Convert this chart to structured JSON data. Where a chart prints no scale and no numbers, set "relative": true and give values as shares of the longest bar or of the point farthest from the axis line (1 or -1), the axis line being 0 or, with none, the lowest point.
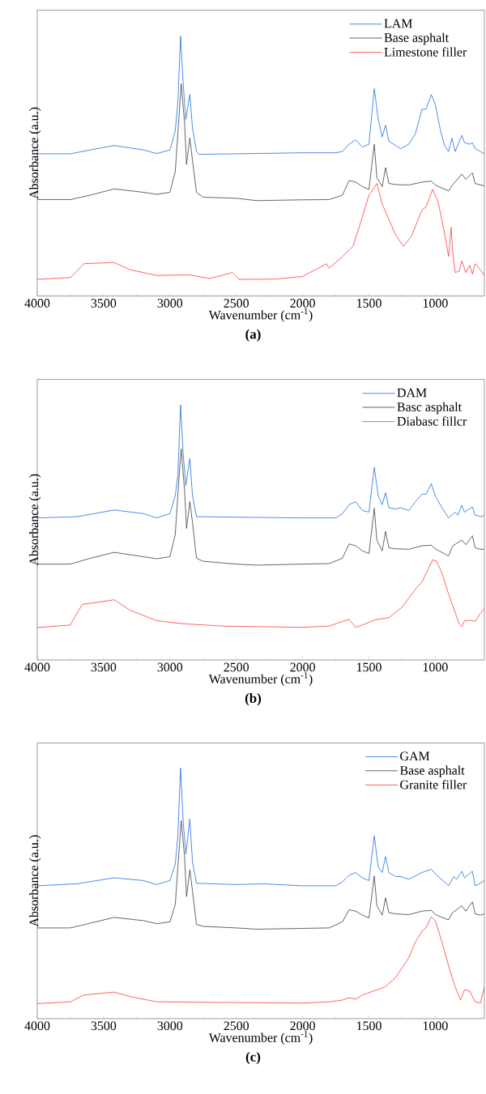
{
  "chart_data": [
    {
      "type": "line",
      "relative": true,
      "xlabel": "Wavenumber (cm$^{-1}$)",
      "ylabel": "Absorbance (a.u.)",
      "annotations": [
        "(a)"
      ],
      "xlim": [
        4000,
        630
      ],
      "xticks": [
        4000,
        3500,
        3000,
        2500,
        2000,
        1500,
        1000
      ],
      "legend": "top right",
      "series": [
        {
          "name": "LAM",
          "color": "#1f6fe0",
          "x": [
            4000,
            3750,
            3600,
            3420,
            3200,
            3100,
            3000,
            2960,
            2940,
            2920,
            2900,
            2880,
            2850,
            2830,
            2800,
            2780,
            2000,
            1750,
            1700,
            1650,
            1600,
            1550,
            1500,
            1460,
            1430,
            1400,
            1375,
            1350,
            1300,
            1260,
            1200,
            1150,
            1100,
            1070,
            1030,
            1000,
            960,
            930,
            900,
            875,
            850,
            800,
            780,
            740,
            720,
            700,
            660,
            630
          ],
          "values": [
            0.547,
            0.547,
            0.562,
            0.579,
            0.562,
            0.548,
            0.562,
            0.635,
            0.747,
            1.0,
            0.815,
            0.68,
            0.775,
            0.646,
            0.556,
            0.545,
            0.551,
            0.551,
            0.556,
            0.584,
            0.601,
            0.573,
            0.584,
            0.798,
            0.68,
            0.612,
            0.657,
            0.596,
            0.579,
            0.567,
            0.584,
            0.624,
            0.719,
            0.719,
            0.775,
            0.736,
            0.635,
            0.579,
            0.556,
            0.607,
            0.556,
            0.618,
            0.59,
            0.584,
            0.59,
            0.567,
            0.556,
            0.547
          ]
        },
        {
          "name": "Base asphalt",
          "color": "#404040",
          "x": [
            4000,
            3750,
            3600,
            3420,
            3200,
            3100,
            3000,
            2960,
            2930,
            2915,
            2890,
            2875,
            2850,
            2830,
            2800,
            2750,
            2500,
            2350,
            2000,
            1800,
            1700,
            1650,
            1600,
            1550,
            1500,
            1460,
            1440,
            1400,
            1375,
            1350,
            1300,
            1200,
            1100,
            1030,
            1000,
            900,
            870,
            800,
            770,
            720,
            700,
            660,
            630
          ],
          "values": [
            0.371,
            0.371,
            0.388,
            0.412,
            0.399,
            0.391,
            0.399,
            0.478,
            0.702,
            0.817,
            0.669,
            0.506,
            0.609,
            0.522,
            0.399,
            0.38,
            0.376,
            0.367,
            0.37,
            0.371,
            0.388,
            0.444,
            0.438,
            0.421,
            0.41,
            0.584,
            0.455,
            0.421,
            0.494,
            0.433,
            0.429,
            0.427,
            0.438,
            0.442,
            0.427,
            0.404,
            0.427,
            0.469,
            0.449,
            0.474,
            0.433,
            0.427,
            0.424
          ]
        },
        {
          "name": "Limestone filler",
          "color": "#ff3b3b",
          "x": [
            4000,
            3750,
            3700,
            3650,
            3550,
            3420,
            3300,
            3100,
            2850,
            2700,
            2530,
            2480,
            2200,
            2000,
            1820,
            1800,
            1700,
            1620,
            1560,
            1500,
            1440,
            1400,
            1300,
            1240,
            1180,
            1100,
            1070,
            1020,
            980,
            930,
            900,
            880,
            870,
            850,
            820,
            800,
            770,
            740,
            720,
            700,
            660,
            630
          ],
          "values": [
            0.064,
            0.071,
            0.096,
            0.124,
            0.126,
            0.129,
            0.101,
            0.079,
            0.081,
            0.067,
            0.09,
            0.064,
            0.065,
            0.075,
            0.124,
            0.107,
            0.152,
            0.191,
            0.287,
            0.388,
            0.433,
            0.354,
            0.236,
            0.191,
            0.23,
            0.331,
            0.343,
            0.41,
            0.365,
            0.242,
            0.152,
            0.264,
            0.174,
            0.09,
            0.096,
            0.135,
            0.09,
            0.118,
            0.084,
            0.124,
            0.101,
            0.079
          ]
        }
      ]
    },
    {
      "type": "line",
      "relative": true,
      "xlabel": "Wavenumber (cm$^{-1}$)",
      "ylabel": "Absorbance (a.u.)",
      "annotations": [
        "(b)"
      ],
      "xlim": [
        4000,
        630
      ],
      "xticks": [
        4000,
        3500,
        3000,
        2500,
        2000,
        1500,
        1000
      ],
      "legend": "top right",
      "series": [
        {
          "name": "DAM",
          "color": "#1f6fe0",
          "x": [
            4000,
            3700,
            3420,
            3200,
            3100,
            3000,
            2960,
            2940,
            2920,
            2900,
            2880,
            2850,
            2830,
            2800,
            2000,
            1750,
            1700,
            1650,
            1600,
            1550,
            1500,
            1460,
            1430,
            1400,
            1375,
            1350,
            1300,
            1260,
            1200,
            1150,
            1100,
            1070,
            1030,
            1000,
            950,
            900,
            850,
            830,
            800,
            780,
            720,
            700,
            650,
            630
          ],
          "values": [
            0.557,
            0.562,
            0.588,
            0.574,
            0.557,
            0.574,
            0.644,
            0.726,
            1.0,
            0.807,
            0.685,
            0.79,
            0.644,
            0.562,
            0.557,
            0.557,
            0.574,
            0.609,
            0.621,
            0.586,
            0.58,
            0.755,
            0.644,
            0.609,
            0.656,
            0.597,
            0.592,
            0.597,
            0.586,
            0.621,
            0.65,
            0.65,
            0.691,
            0.644,
            0.597,
            0.557,
            0.58,
            0.568,
            0.607,
            0.58,
            0.6,
            0.568,
            0.562,
            0.568
          ]
        },
        {
          "name": "Basc asphalt",
          "color": "#404040",
          "x": [
            4000,
            3750,
            3600,
            3420,
            3200,
            3100,
            3000,
            2960,
            2930,
            2915,
            2890,
            2875,
            2850,
            2830,
            2800,
            2750,
            2500,
            2350,
            2000,
            1800,
            1700,
            1650,
            1600,
            1550,
            1500,
            1460,
            1440,
            1400,
            1375,
            1350,
            1300,
            1200,
            1100,
            1030,
            1000,
            900,
            870,
            800,
            770,
            720,
            700,
            660,
            630
          ],
          "values": [
            0.376,
            0.376,
            0.399,
            0.422,
            0.405,
            0.397,
            0.405,
            0.492,
            0.726,
            0.828,
            0.667,
            0.516,
            0.621,
            0.539,
            0.399,
            0.387,
            0.376,
            0.372,
            0.376,
            0.378,
            0.399,
            0.455,
            0.448,
            0.428,
            0.417,
            0.595,
            0.469,
            0.428,
            0.504,
            0.44,
            0.436,
            0.434,
            0.448,
            0.45,
            0.436,
            0.408,
            0.446,
            0.471,
            0.452,
            0.487,
            0.44,
            0.434,
            0.434
          ]
        },
        {
          "name": "Diabasc fillcr",
          "color": "#ff3b3b",
          "x": [
            4000,
            3750,
            3720,
            3660,
            3550,
            3420,
            3300,
            3100,
            2900,
            2600,
            2000,
            1800,
            1700,
            1650,
            1600,
            1550,
            1450,
            1350,
            1250,
            1150,
            1100,
            1020,
            990,
            950,
            900,
            820,
            800,
            780,
            730,
            700,
            660,
            630
          ],
          "values": [
            0.127,
            0.137,
            0.166,
            0.218,
            0.226,
            0.236,
            0.195,
            0.154,
            0.142,
            0.133,
            0.128,
            0.133,
            0.151,
            0.159,
            0.128,
            0.137,
            0.158,
            0.166,
            0.207,
            0.277,
            0.306,
            0.393,
            0.387,
            0.341,
            0.259,
            0.142,
            0.131,
            0.154,
            0.156,
            0.151,
            0.183,
            0.201
          ]
        }
      ]
    },
    {
      "type": "line",
      "relative": true,
      "xlabel": "Wavenumber (cm$^{-1}$)",
      "ylabel": "Absorbance (a.u.)",
      "annotations": [
        "(c)"
      ],
      "xlim": [
        4000,
        630
      ],
      "xticks": [
        4000,
        3500,
        3000,
        2500,
        2000,
        1500,
        1000
      ],
      "legend": "top right",
      "series": [
        {
          "name": "GAM",
          "color": "#1f6fe0",
          "x": [
            4000,
            3700,
            3420,
            3200,
            3100,
            3000,
            2960,
            2940,
            2920,
            2900,
            2880,
            2850,
            2830,
            2800,
            2500,
            2300,
            2000,
            1750,
            1700,
            1650,
            1600,
            1550,
            1500,
            1460,
            1430,
            1400,
            1375,
            1350,
            1300,
            1260,
            1200,
            1100,
            1030,
            1000,
            900,
            860,
            840,
            800,
            780,
            720,
            700,
            660,
            630
          ],
          "values": [
            0.53,
            0.538,
            0.562,
            0.551,
            0.535,
            0.551,
            0.615,
            0.732,
            1.0,
            0.785,
            0.657,
            0.796,
            0.626,
            0.54,
            0.535,
            0.538,
            0.53,
            0.53,
            0.546,
            0.572,
            0.583,
            0.562,
            0.551,
            0.73,
            0.604,
            0.583,
            0.647,
            0.583,
            0.567,
            0.567,
            0.556,
            0.583,
            0.596,
            0.578,
            0.53,
            0.567,
            0.556,
            0.588,
            0.562,
            0.588,
            0.53,
            0.54,
            0.551
          ]
        },
        {
          "name": "Base asphalt",
          "color": "#404040",
          "x": [
            4000,
            3750,
            3600,
            3420,
            3200,
            3100,
            3000,
            2960,
            2930,
            2915,
            2890,
            2875,
            2850,
            2830,
            2800,
            2750,
            2500,
            2350,
            2000,
            1800,
            1700,
            1650,
            1600,
            1550,
            1500,
            1460,
            1440,
            1400,
            1375,
            1350,
            1300,
            1200,
            1100,
            1030,
            1000,
            900,
            870,
            800,
            770,
            720,
            700,
            660,
            630
          ],
          "values": [
            0.362,
            0.362,
            0.381,
            0.404,
            0.391,
            0.379,
            0.386,
            0.455,
            0.679,
            0.79,
            0.647,
            0.487,
            0.594,
            0.509,
            0.376,
            0.368,
            0.362,
            0.357,
            0.36,
            0.362,
            0.386,
            0.434,
            0.429,
            0.413,
            0.402,
            0.569,
            0.45,
            0.413,
            0.482,
            0.423,
            0.418,
            0.415,
            0.429,
            0.432,
            0.415,
            0.394,
            0.423,
            0.45,
            0.429,
            0.466,
            0.418,
            0.413,
            0.418
          ]
        },
        {
          "name": "Granite filler",
          "color": "#ff3b3b",
          "x": [
            4000,
            3750,
            3650,
            3420,
            3300,
            3100,
            2500,
            2000,
            1800,
            1700,
            1650,
            1600,
            1550,
            1430,
            1380,
            1300,
            1200,
            1150,
            1100,
            1070,
            1030,
            1000,
            950,
            900,
            850,
            810,
            780,
            740,
            700,
            660,
            630
          ],
          "values": [
            0.06,
            0.067,
            0.094,
            0.106,
            0.088,
            0.067,
            0.064,
            0.062,
            0.067,
            0.074,
            0.083,
            0.078,
            0.094,
            0.117,
            0.126,
            0.163,
            0.243,
            0.306,
            0.349,
            0.362,
            0.407,
            0.391,
            0.306,
            0.211,
            0.126,
            0.074,
            0.115,
            0.11,
            0.067,
            0.062,
            0.126
          ]
        }
      ]
    }
  ]
}
